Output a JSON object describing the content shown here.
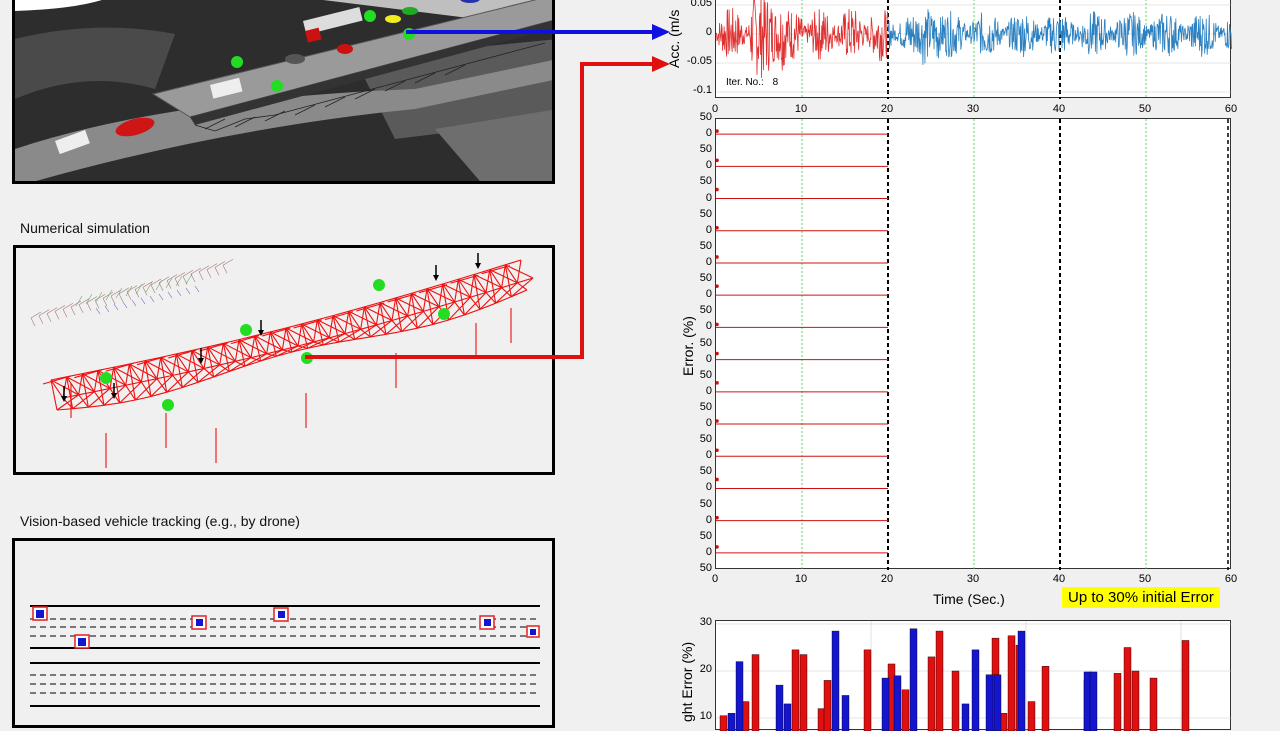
{
  "captions": {
    "numerical": "Numerical simulation",
    "vision": "Vision-based vehicle tracking (e.g., by drone)"
  },
  "acc_plot": {
    "ylabel": "Acc. (m/s",
    "yticks": [
      "0.05",
      "0",
      "-0.05",
      "-0.1"
    ],
    "xticks": [
      "0",
      "10",
      "20",
      "30",
      "40",
      "50",
      "60"
    ],
    "iter_label": "Iter. No.:",
    "iter_value": "8"
  },
  "error_plot": {
    "ylabel": "Error. (%)",
    "xlabel": "Time (Sec.)",
    "yticks": [
      "50",
      "0",
      "50",
      "0",
      "50",
      "0",
      "50",
      "0",
      "50",
      "0",
      "50",
      "0",
      "50",
      "0",
      "50",
      "0",
      "50",
      "0",
      "50",
      "0",
      "50",
      "0",
      "50",
      "0",
      "50",
      "0",
      "50",
      "0",
      "50"
    ],
    "xticks": [
      "0",
      "10",
      "20",
      "30",
      "40",
      "50",
      "60"
    ],
    "note": "Up to 30% initial Error"
  },
  "weight_plot": {
    "ylabel": "ght Error (%)",
    "yticks": [
      "30",
      "20",
      "10"
    ]
  },
  "chart_data": {
    "type": "bar",
    "ylabel": "ght Error (%)",
    "ylim": [
      10,
      30
    ],
    "series": [
      {
        "color": "#e01010",
        "values": [
          10.5,
          13.5,
          23.5,
          24.5,
          23.5,
          12,
          18,
          24.5,
          21.5,
          16,
          23,
          28.5,
          20,
          27,
          11,
          27.5,
          25.5,
          13.5,
          21,
          18,
          19.5,
          25,
          20,
          18.5,
          26.5
        ]
      },
      {
        "color": "#1515d0",
        "values": [
          11,
          22,
          17,
          13,
          28.5,
          14.8,
          18.5,
          19,
          29,
          13,
          24.5,
          19.2,
          19.2,
          28.5,
          19.8,
          19.8
        ]
      }
    ]
  },
  "colors": {
    "measured": "#e03030",
    "predicted": "#2a80c0",
    "arrow_blue": "#1010e0",
    "arrow_red": "#e01010",
    "sensor": "#22dd22",
    "truss": "#ee1111",
    "highlight": "#ffff00"
  }
}
